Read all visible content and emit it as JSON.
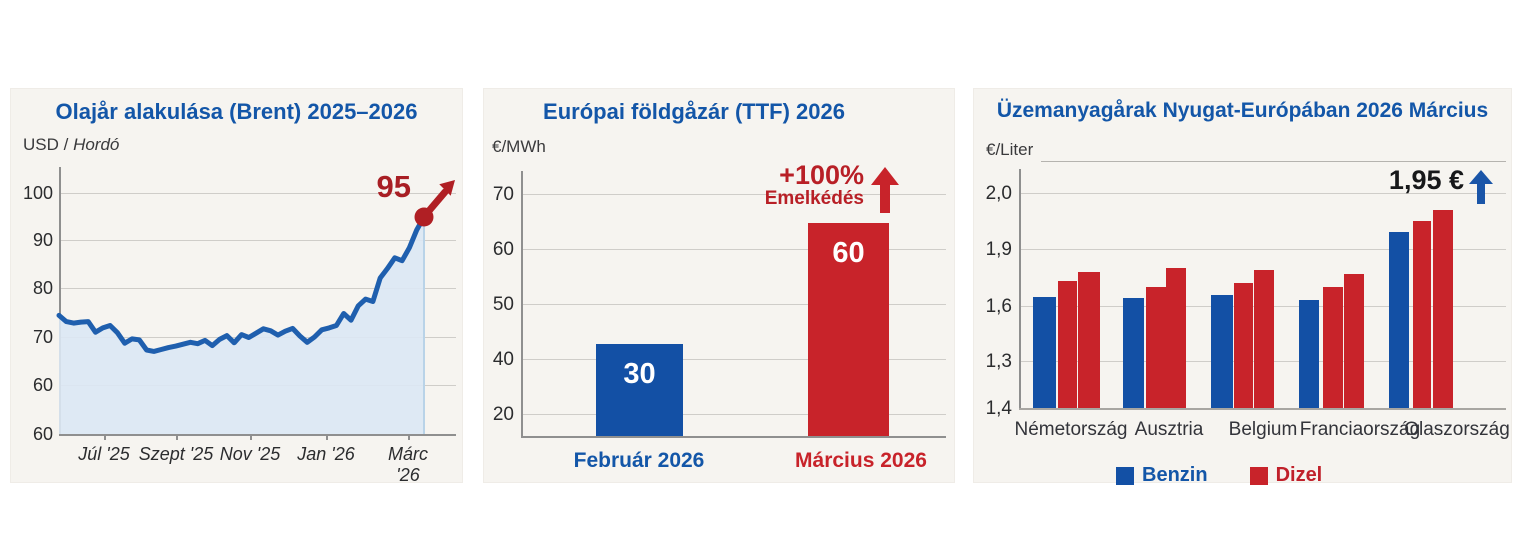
{
  "colors": {
    "title_blue": "#1356a8",
    "bar_blue": "#1350a5",
    "bar_red": "#c8232a",
    "annotation_red": "#b01f24",
    "annotation_blue_arrow": "#1a55a8",
    "line_blue": "#1f5fae",
    "area_fill": "#dbe8f4",
    "panel_bg": "#f6f4f0",
    "grid": "#cfcdc9",
    "text_dark": "#2b2c2e"
  },
  "chart_data": [
    {
      "type": "area",
      "title": "Olajår alakulása (Brent) 2025–2026",
      "ylabel": "USD / Hordó",
      "ylabel_plain": "USD / ",
      "ylabel_italic": "Hordó",
      "ytick_labels": [
        "100",
        "90",
        "80",
        "70",
        "60",
        "60"
      ],
      "xtick_labels": [
        "Júl '25",
        "Szept '25",
        "Nov '25",
        "Jan '26",
        "Márc '26"
      ],
      "ylim": [
        60,
        100
      ],
      "grid": "on",
      "end_annotation": "95",
      "values": [
        74.5,
        73.2,
        72.9,
        73.1,
        73.2,
        71.0,
        71.9,
        72.4,
        70.9,
        68.7,
        69.6,
        69.4,
        67.3,
        67.0,
        67.4,
        67.8,
        68.1,
        68.5,
        68.9,
        68.6,
        69.3,
        68.2,
        69.5,
        70.3,
        68.8,
        70.5,
        69.9,
        70.8,
        71.7,
        71.3,
        70.4,
        71.2,
        71.8,
        70.2,
        68.9,
        70.0,
        71.5,
        71.9,
        72.4,
        74.9,
        73.5,
        76.5,
        77.9,
        77.4,
        82.3,
        84.3,
        86.5,
        85.9,
        88.6,
        92.3,
        95.0
      ]
    },
    {
      "type": "bar",
      "title": "Európai földgåzár (TTF) 2026",
      "ylabel": "€/MWh",
      "ytick_labels": [
        "70",
        "60",
        "50",
        "40",
        "20"
      ],
      "ytick_values": [
        70,
        60,
        50,
        40,
        20
      ],
      "grid": "on",
      "categories": [
        "Február 2026",
        "Március 2026"
      ],
      "values": [
        30,
        60
      ],
      "bar_labels": [
        "30",
        "60"
      ],
      "drawn_values": [
        42.7,
        64.7
      ],
      "bar_color_keys": [
        "bar_blue",
        "bar_red"
      ],
      "category_color_keys": [
        "title_blue",
        "bar_red"
      ],
      "annotation": {
        "line1": "+100%",
        "line2": "Emelkédés"
      }
    },
    {
      "type": "grouped-bar",
      "title": "Üzemanyagårak Nyugat-Európában 2026 Március",
      "ylabel": "€/Liter",
      "ytick_labels": [
        "2,0",
        "1,9",
        "1,6",
        "1,3",
        "1,4"
      ],
      "ytick_values": [
        2.0,
        1.9,
        1.6,
        1.3,
        1.4
      ],
      "grid": "on",
      "categories": [
        "Németország",
        "Ausztria",
        "Belgium",
        "Franciaország",
        "Olaszország"
      ],
      "series": [
        {
          "name": "Benzin",
          "color_key": "bar_blue",
          "values": [
            1.65,
            1.64,
            1.66,
            1.63,
            1.93
          ]
        },
        {
          "name": "Dizel",
          "color_key": "bar_red",
          "values": [
            1.73,
            1.7,
            1.72,
            1.7,
            1.95
          ]
        },
        {
          "name": "Dizel",
          "color_key": "bar_red",
          "values": [
            1.78,
            1.8,
            1.79,
            1.77,
            1.97
          ]
        }
      ],
      "annotation": "1,95 €",
      "legend": [
        {
          "label": "Benzin",
          "color_key": "bar_blue"
        },
        {
          "label": "Dizel",
          "color_key": "bar_red"
        }
      ],
      "legend_position": "bottom"
    }
  ]
}
